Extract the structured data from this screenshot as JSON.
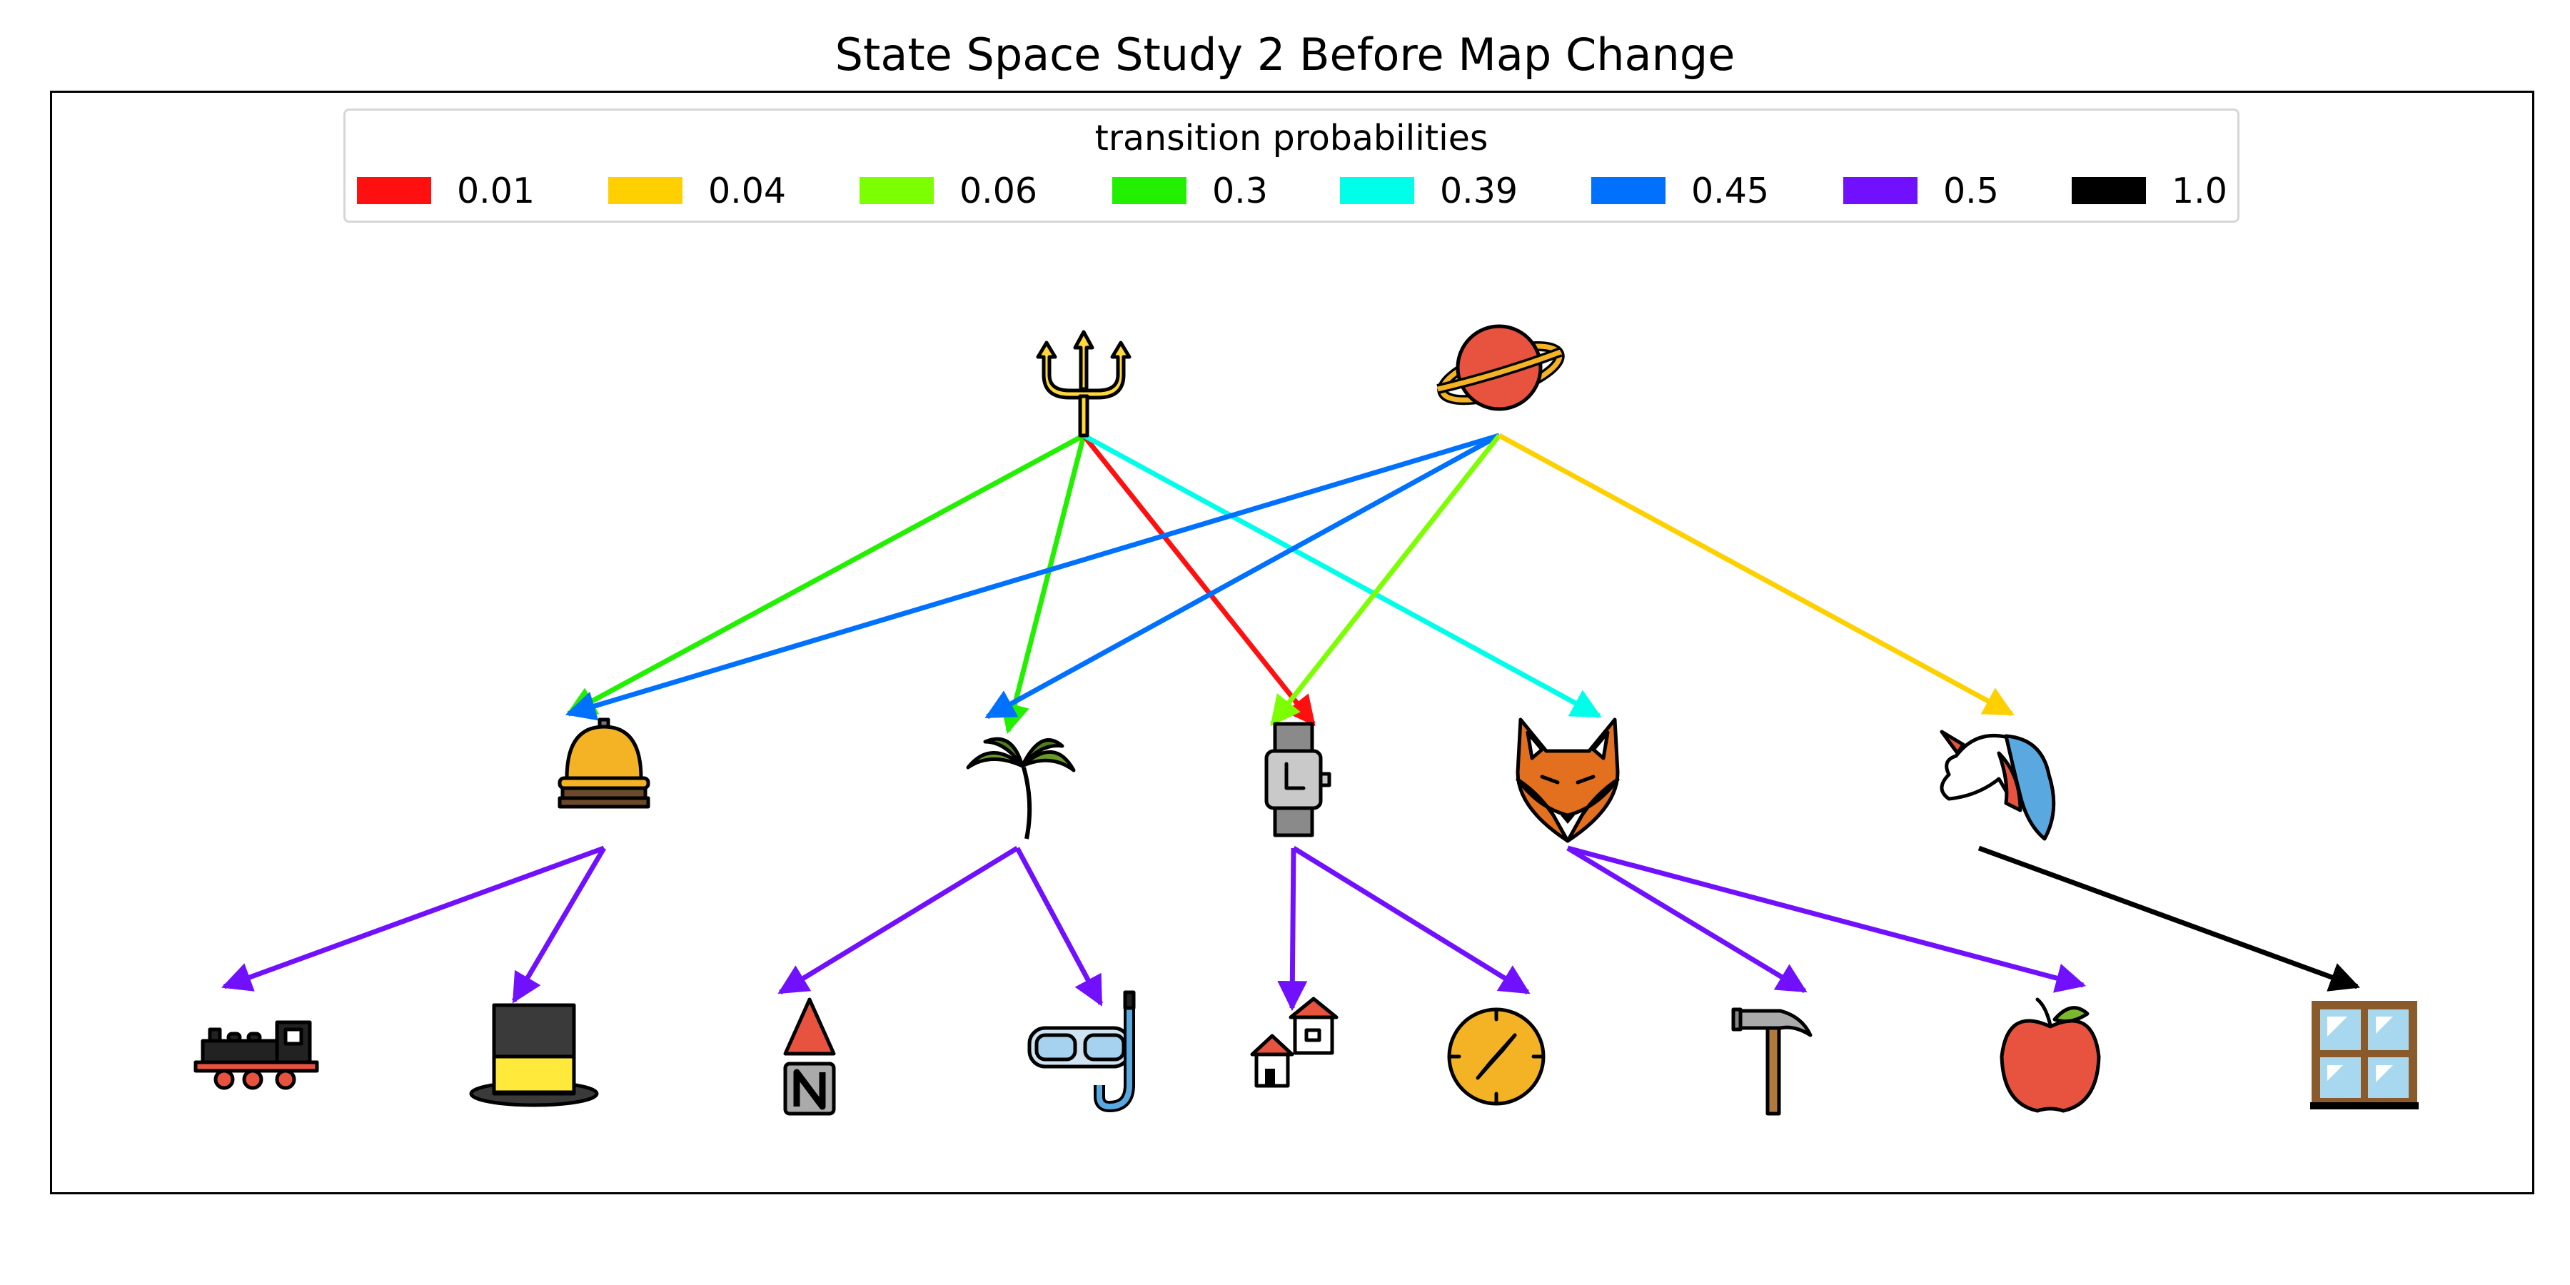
{
  "title": "State Space Study 2 Before Map Change",
  "legend": {
    "title": "transition probabilities",
    "entries": [
      {
        "label": "0.01",
        "color": "#ff1010"
      },
      {
        "label": "0.04",
        "color": "#ffd000"
      },
      {
        "label": "0.06",
        "color": "#7cff00"
      },
      {
        "label": "0.3",
        "color": "#22f000"
      },
      {
        "label": "0.39",
        "color": "#00ffe8"
      },
      {
        "label": "0.45",
        "color": "#0070ff"
      },
      {
        "label": "0.5",
        "color": "#7010ff"
      },
      {
        "label": "1.0",
        "color": "#000000"
      }
    ]
  },
  "nodes": [
    {
      "id": "trident",
      "icon": "trident-icon",
      "level": 0
    },
    {
      "id": "planet",
      "icon": "planet-icon",
      "level": 0
    },
    {
      "id": "bell",
      "icon": "service-bell-icon",
      "level": 1
    },
    {
      "id": "palm",
      "icon": "palm-tree-icon",
      "level": 1
    },
    {
      "id": "watch",
      "icon": "wristwatch-icon",
      "level": 1
    },
    {
      "id": "fox",
      "icon": "fox-icon",
      "level": 1
    },
    {
      "id": "unicorn",
      "icon": "unicorn-icon",
      "level": 1
    },
    {
      "id": "train",
      "icon": "locomotive-icon",
      "level": 2
    },
    {
      "id": "tophat",
      "icon": "top-hat-icon",
      "level": 2
    },
    {
      "id": "north",
      "icon": "north-arrow-icon",
      "level": 2
    },
    {
      "id": "snorkel",
      "icon": "diving-mask-icon",
      "level": 2
    },
    {
      "id": "houses",
      "icon": "houses-icon",
      "level": 2
    },
    {
      "id": "compass",
      "icon": "compass-icon",
      "level": 2
    },
    {
      "id": "hammer",
      "icon": "hammer-icon",
      "level": 2
    },
    {
      "id": "apple",
      "icon": "apple-icon",
      "level": 2
    },
    {
      "id": "window",
      "icon": "window-icon",
      "level": 2
    }
  ],
  "edges": [
    {
      "from": "trident",
      "to": "bell",
      "p": "0.3"
    },
    {
      "from": "trident",
      "to": "palm",
      "p": "0.3"
    },
    {
      "from": "trident",
      "to": "watch",
      "p": "0.01"
    },
    {
      "from": "trident",
      "to": "fox",
      "p": "0.39"
    },
    {
      "from": "planet",
      "to": "bell",
      "p": "0.45"
    },
    {
      "from": "planet",
      "to": "palm",
      "p": "0.45"
    },
    {
      "from": "planet",
      "to": "watch",
      "p": "0.06"
    },
    {
      "from": "planet",
      "to": "unicorn",
      "p": "0.04"
    },
    {
      "from": "bell",
      "to": "train",
      "p": "0.5"
    },
    {
      "from": "bell",
      "to": "tophat",
      "p": "0.5"
    },
    {
      "from": "palm",
      "to": "north",
      "p": "0.5"
    },
    {
      "from": "palm",
      "to": "snorkel",
      "p": "0.5"
    },
    {
      "from": "watch",
      "to": "houses",
      "p": "0.5"
    },
    {
      "from": "watch",
      "to": "compass",
      "p": "0.5"
    },
    {
      "from": "fox",
      "to": "hammer",
      "p": "0.5"
    },
    {
      "from": "fox",
      "to": "apple",
      "p": "0.5"
    },
    {
      "from": "unicorn",
      "to": "window",
      "p": "1.0"
    }
  ]
}
